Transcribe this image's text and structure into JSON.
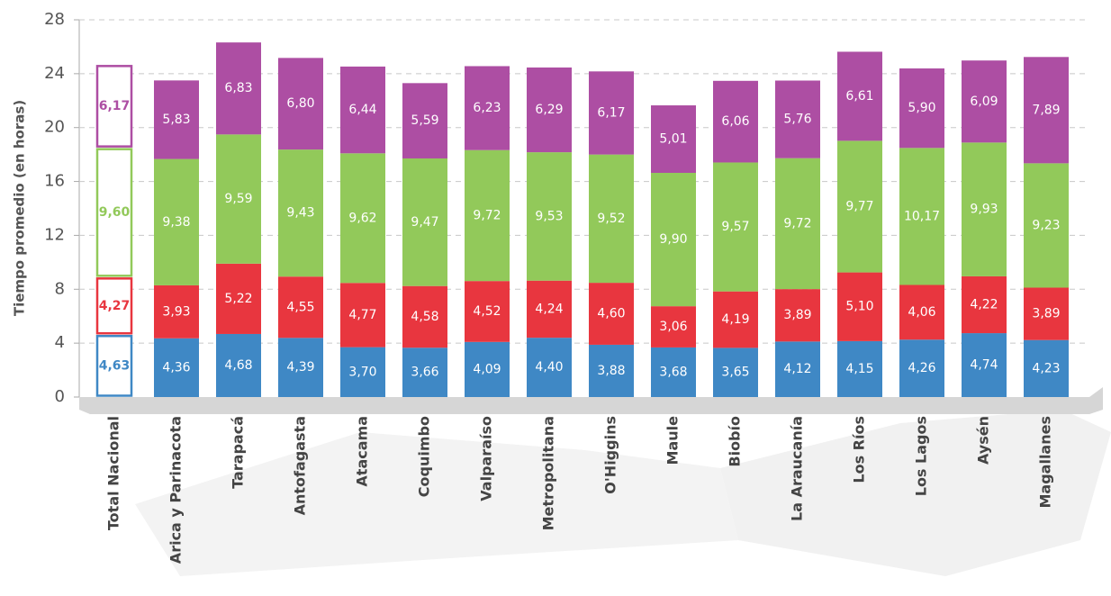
{
  "chart_data": {
    "type": "stacked_bar",
    "y_label": "Tiempo promedio (en horas)",
    "categories": [
      "Total Nacional",
      "Arica y Parinacota",
      "Tarapacá",
      "Antofagasta",
      "Atacama",
      "Coquimbo",
      "Valparaíso",
      "Metropolitana",
      "O'Higgins",
      "Maule",
      "Biobío",
      "La Araucanía",
      "Los Ríos",
      "Los Lagos",
      "Aysén",
      "Magallanes"
    ],
    "series": [
      {
        "color": "#3f88c5",
        "values": [
          4.63,
          4.36,
          4.68,
          4.39,
          3.7,
          3.66,
          4.09,
          4.4,
          3.88,
          3.68,
          3.65,
          4.12,
          4.15,
          4.26,
          4.74,
          4.23
        ],
        "value_labels": [
          "4,63",
          "4,36",
          "4,68",
          "4,39",
          "3,70",
          "3,66",
          "4,09",
          "4,40",
          "3,88",
          "3,68",
          "3,65",
          "4,12",
          "4,15",
          "4,26",
          "4,74",
          "4,23"
        ]
      },
      {
        "color": "#e8363f",
        "values": [
          4.27,
          3.93,
          5.22,
          4.55,
          4.77,
          4.58,
          4.52,
          4.24,
          4.6,
          3.06,
          4.19,
          3.89,
          5.1,
          4.06,
          4.22,
          3.89
        ],
        "value_labels": [
          "4,27",
          "3,93",
          "5,22",
          "4,55",
          "4,77",
          "4,58",
          "4,52",
          "4,24",
          "4,60",
          "3,06",
          "4,19",
          "3,89",
          "5,10",
          "4,06",
          "4,22",
          "3,89"
        ]
      },
      {
        "color": "#92c95a",
        "values": [
          9.6,
          9.38,
          9.59,
          9.43,
          9.62,
          9.47,
          9.72,
          9.53,
          9.52,
          9.9,
          9.57,
          9.72,
          9.77,
          10.17,
          9.93,
          9.23
        ],
        "value_labels": [
          "9,60",
          "9,38",
          "9,59",
          "9,43",
          "9,62",
          "9,47",
          "9,72",
          "9,53",
          "9,52",
          "9,90",
          "9,57",
          "9,72",
          "9,77",
          "10,17",
          "9,93",
          "9,23"
        ]
      },
      {
        "color": "#ad4ea3",
        "values": [
          6.17,
          5.83,
          6.83,
          6.8,
          6.44,
          5.59,
          6.23,
          6.29,
          6.17,
          5.01,
          6.06,
          5.76,
          6.61,
          5.9,
          6.09,
          7.89
        ],
        "value_labels": [
          "6,17",
          "5,83",
          "6,83",
          "6,80",
          "6,44",
          "5,59",
          "6,23",
          "6,29",
          "6,17",
          "5,01",
          "6,06",
          "5,76",
          "6,61",
          "5,90",
          "6,09",
          "7,89"
        ]
      }
    ],
    "ylim": [
      0,
      28
    ],
    "yticks": [
      0,
      4,
      8,
      12,
      16,
      20,
      24,
      28
    ],
    "grid": true
  }
}
